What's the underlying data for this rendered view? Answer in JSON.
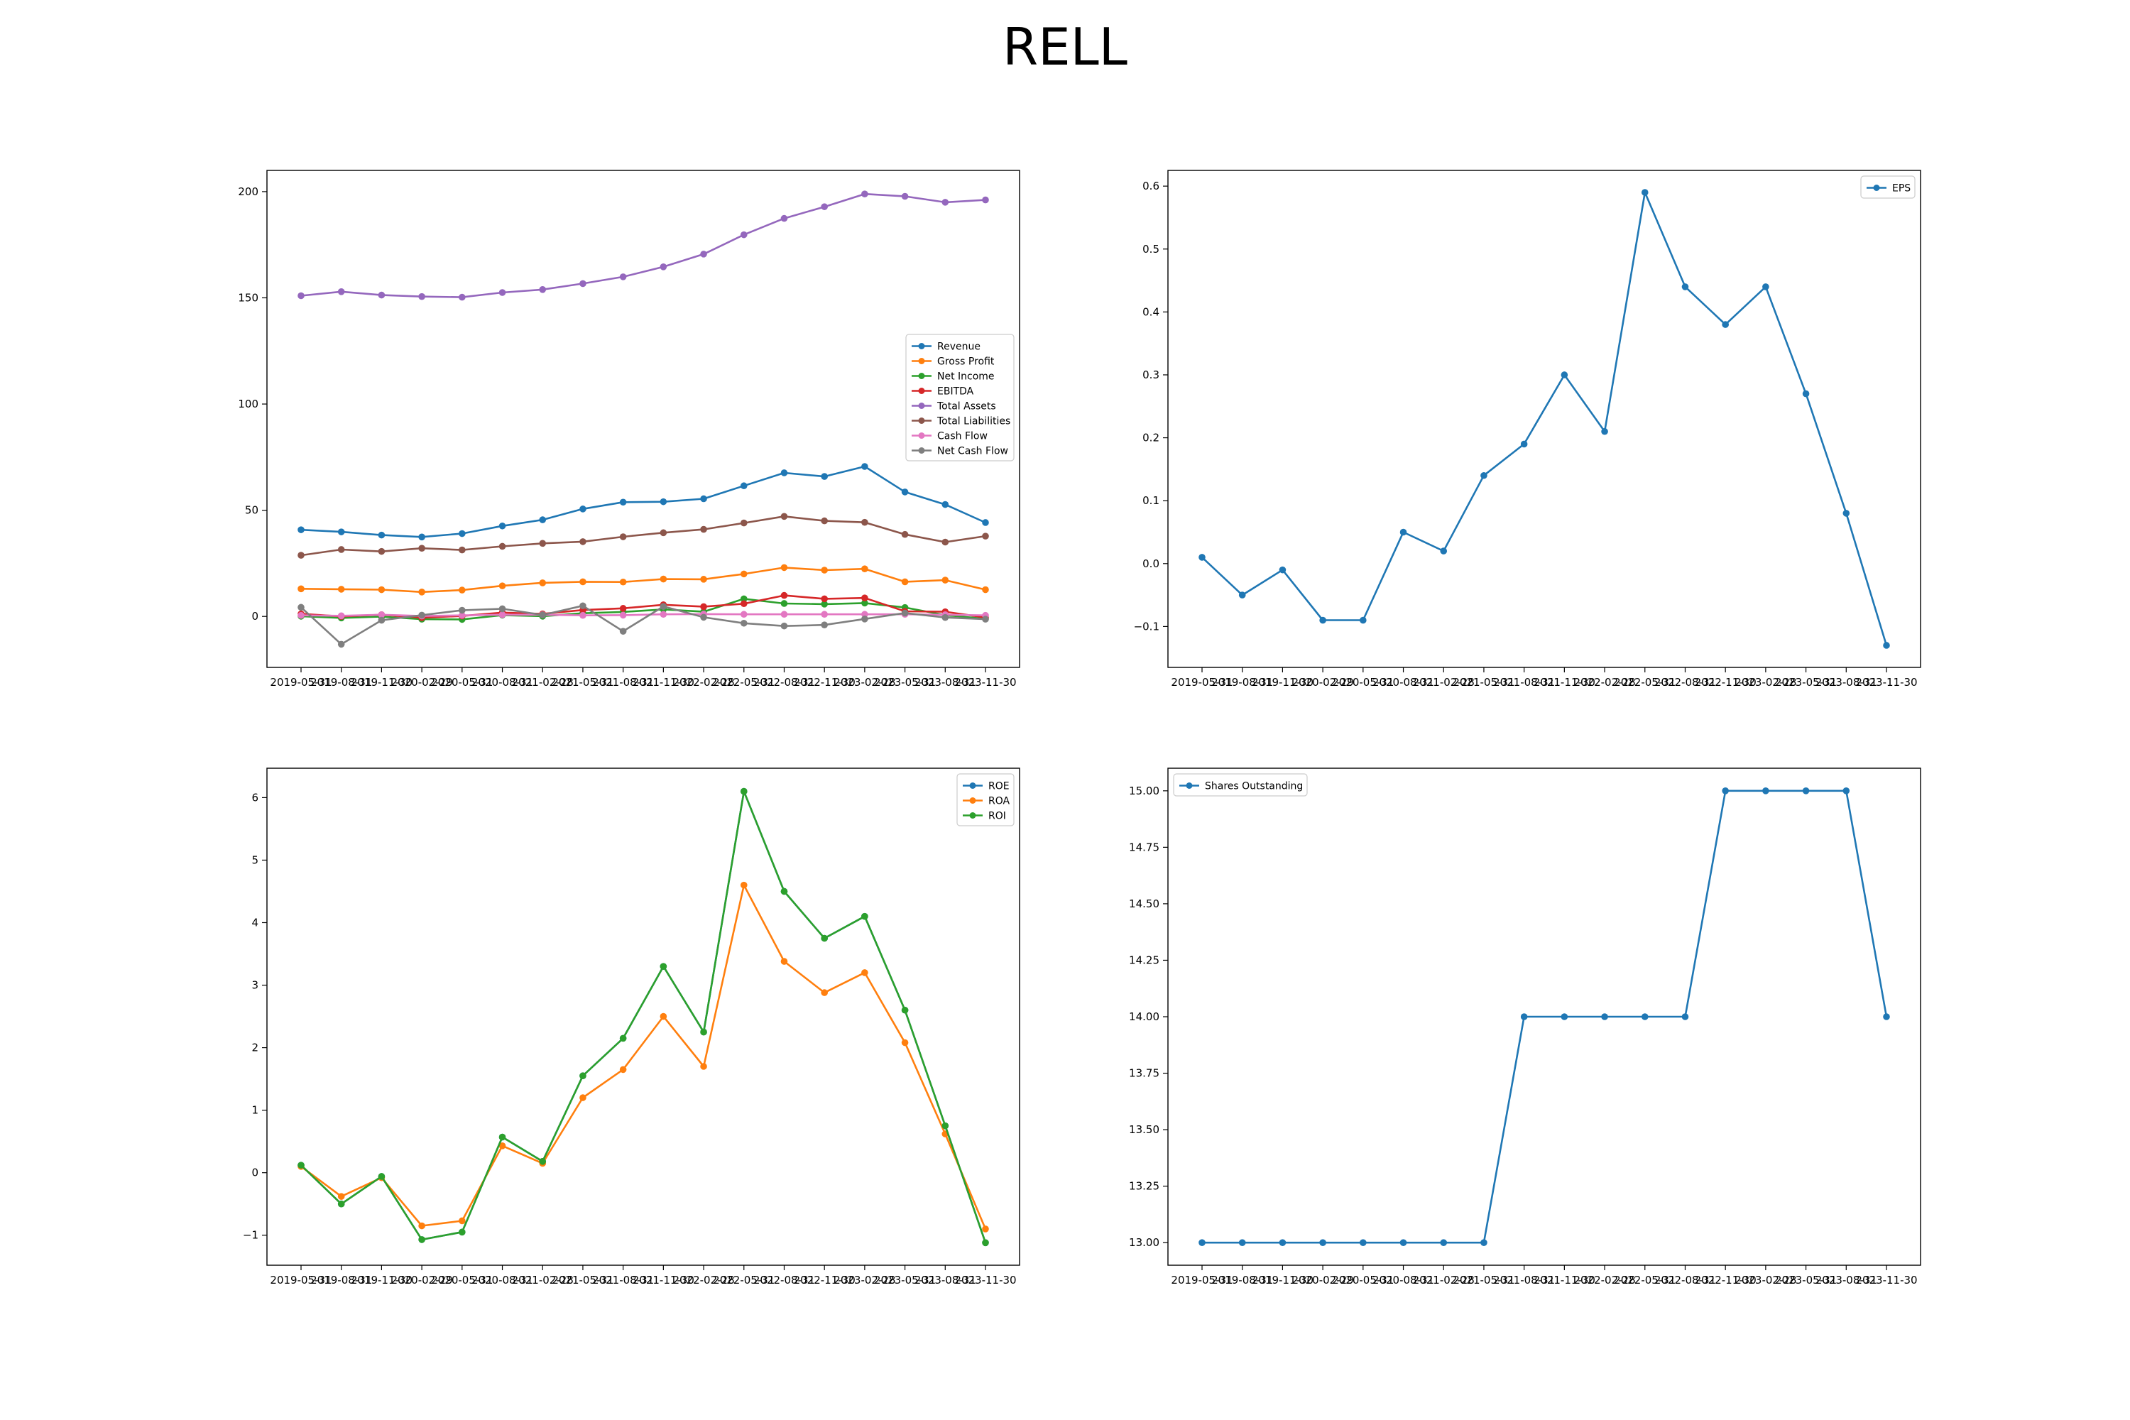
{
  "title": "RELL",
  "chart_data": [
    {
      "type": "line",
      "legend_position": "center-right",
      "x": [
        "2019-05-31",
        "2019-08-31",
        "2019-11-30",
        "2020-02-29",
        "2020-05-31",
        "2020-08-31",
        "2021-02-28",
        "2021-05-31",
        "2021-08-31",
        "2021-11-30",
        "2022-02-28",
        "2022-05-31",
        "2022-08-31",
        "2022-11-30",
        "2023-02-28",
        "2023-05-31",
        "2023-08-31",
        "2023-11-30"
      ],
      "ylim": [
        -24,
        210
      ],
      "yticks": [
        0,
        50,
        100,
        150,
        200
      ],
      "yticklabels": [
        "0",
        "50",
        "100",
        "150",
        "200"
      ],
      "series": [
        {
          "name": "Revenue",
          "color": "#1f77b4",
          "values": [
            40.8,
            39.8,
            38.3,
            37.4,
            39.0,
            42.6,
            45.5,
            50.6,
            53.8,
            54.0,
            55.4,
            61.5,
            67.6,
            65.9,
            70.6,
            58.6,
            52.7,
            44.2
          ]
        },
        {
          "name": "Gross Profit",
          "color": "#ff7f0e",
          "values": [
            13.0,
            12.8,
            12.6,
            11.5,
            12.4,
            14.4,
            15.8,
            16.3,
            16.2,
            17.6,
            17.5,
            20.0,
            23.0,
            21.8,
            22.4,
            16.3,
            17.1,
            12.6
          ]
        },
        {
          "name": "Net Income",
          "color": "#2ca02c",
          "values": [
            0.1,
            -0.7,
            -0.1,
            -1.3,
            -1.4,
            0.6,
            0.1,
            1.5,
            2.1,
            3.3,
            2.2,
            8.3,
            6.1,
            5.8,
            6.3,
            4.2,
            0.6,
            -1.1
          ]
        },
        {
          "name": "EBITDA",
          "color": "#d62728",
          "values": [
            1.2,
            0.0,
            0.8,
            -0.6,
            0.2,
            1.8,
            1.2,
            3.0,
            3.8,
            5.5,
            4.6,
            6.0,
            9.9,
            8.3,
            8.7,
            2.4,
            2.2,
            -0.5
          ]
        },
        {
          "name": "Total Assets",
          "color": "#9467bd",
          "values": [
            151.0,
            152.9,
            151.3,
            150.6,
            150.3,
            152.5,
            153.9,
            156.7,
            159.9,
            164.6,
            170.6,
            179.7,
            187.4,
            192.9,
            198.9,
            197.8,
            195.0,
            196.1
          ]
        },
        {
          "name": "Total Liabilities",
          "color": "#8c564b",
          "values": [
            28.8,
            31.5,
            30.6,
            32.1,
            31.3,
            33.0,
            34.4,
            35.2,
            37.5,
            39.4,
            41.0,
            44.0,
            47.1,
            45.0,
            44.3,
            38.6,
            35.0,
            37.8
          ]
        },
        {
          "name": "Cash Flow",
          "color": "#e377c2",
          "values": [
            0.5,
            0.3,
            0.8,
            0.2,
            0.5,
            0.8,
            0.8,
            0.5,
            0.6,
            1.0,
            1.1,
            1.0,
            1.0,
            1.0,
            1.0,
            1.0,
            0.8,
            0.5
          ]
        },
        {
          "name": "Net Cash Flow",
          "color": "#7f7f7f",
          "values": [
            4.3,
            -13.1,
            -1.8,
            0.6,
            2.9,
            3.6,
            0.7,
            5.0,
            -7.0,
            4.7,
            -0.4,
            -3.2,
            -4.5,
            -4.0,
            -1.2,
            1.6,
            -0.5,
            -1.3
          ]
        }
      ]
    },
    {
      "type": "line",
      "legend_position": "top-right",
      "x": [
        "2019-05-31",
        "2019-08-31",
        "2019-11-30",
        "2020-02-29",
        "2020-05-31",
        "2020-08-31",
        "2021-02-28",
        "2021-05-31",
        "2021-08-31",
        "2021-11-30",
        "2022-02-28",
        "2022-05-31",
        "2022-08-31",
        "2022-11-30",
        "2023-02-28",
        "2023-05-31",
        "2023-08-31",
        "2023-11-30"
      ],
      "ylim": [
        -0.165,
        0.625
      ],
      "yticks": [
        -0.1,
        0.0,
        0.1,
        0.2,
        0.3,
        0.4,
        0.5,
        0.6
      ],
      "yticklabels": [
        "−0.1",
        "0.0",
        "0.1",
        "0.2",
        "0.3",
        "0.4",
        "0.5",
        "0.6"
      ],
      "series": [
        {
          "name": "EPS",
          "color": "#1f77b4",
          "values": [
            0.01,
            -0.05,
            -0.01,
            -0.09,
            -0.09,
            0.05,
            0.02,
            0.14,
            0.19,
            0.3,
            0.21,
            0.59,
            0.44,
            0.38,
            0.44,
            0.27,
            0.08,
            -0.13
          ]
        }
      ]
    },
    {
      "type": "line",
      "legend_position": "top-right",
      "x": [
        "2019-05-31",
        "2019-08-31",
        "2019-11-30",
        "2020-02-29",
        "2020-05-31",
        "2020-08-31",
        "2021-02-28",
        "2021-05-31",
        "2021-08-31",
        "2021-11-30",
        "2022-02-28",
        "2022-05-31",
        "2022-08-31",
        "2022-11-30",
        "2023-02-28",
        "2023-05-31",
        "2023-08-31",
        "2023-11-30"
      ],
      "ylim": [
        -1.48,
        6.47
      ],
      "yticks": [
        -1,
        0,
        1,
        2,
        3,
        4,
        5,
        6
      ],
      "yticklabels": [
        "−1",
        "0",
        "1",
        "2",
        "3",
        "4",
        "5",
        "6"
      ],
      "series": [
        {
          "name": "ROE",
          "color": "#1f77b4",
          "values": [
            0.12,
            -0.5,
            -0.06,
            -1.07,
            -0.95,
            0.57,
            0.18,
            1.55,
            2.15,
            3.3,
            2.25,
            6.1,
            4.5,
            3.75,
            4.1,
            2.6,
            0.75,
            -1.12
          ]
        },
        {
          "name": "ROA",
          "color": "#ff7f0e",
          "values": [
            0.1,
            -0.38,
            -0.08,
            -0.85,
            -0.77,
            0.43,
            0.15,
            1.2,
            1.65,
            2.5,
            1.7,
            4.6,
            3.38,
            2.88,
            3.2,
            2.08,
            0.62,
            -0.9
          ]
        },
        {
          "name": "ROI",
          "color": "#2ca02c",
          "values": [
            0.12,
            -0.5,
            -0.06,
            -1.07,
            -0.95,
            0.57,
            0.18,
            1.55,
            2.15,
            3.3,
            2.25,
            6.1,
            4.5,
            3.75,
            4.1,
            2.6,
            0.75,
            -1.12
          ]
        }
      ]
    },
    {
      "type": "line",
      "legend_position": "top-left",
      "x": [
        "2019-05-31",
        "2019-08-31",
        "2019-11-30",
        "2020-02-29",
        "2020-05-31",
        "2020-08-31",
        "2021-02-28",
        "2021-05-31",
        "2021-08-31",
        "2021-11-30",
        "2022-02-28",
        "2022-05-31",
        "2022-08-31",
        "2022-11-30",
        "2023-02-28",
        "2023-05-31",
        "2023-08-31",
        "2023-11-30"
      ],
      "ylim": [
        12.9,
        15.1
      ],
      "yticks": [
        13.0,
        13.25,
        13.5,
        13.75,
        14.0,
        14.25,
        14.5,
        14.75,
        15.0
      ],
      "yticklabels": [
        "13.00",
        "13.25",
        "13.50",
        "13.75",
        "14.00",
        "14.25",
        "14.50",
        "14.75",
        "15.00"
      ],
      "series": [
        {
          "name": "Shares Outstanding",
          "color": "#1f77b4",
          "values": [
            13,
            13,
            13,
            13,
            13,
            13,
            13,
            13,
            14,
            14,
            14,
            14,
            14,
            15,
            15,
            15,
            15,
            14
          ]
        }
      ]
    }
  ]
}
